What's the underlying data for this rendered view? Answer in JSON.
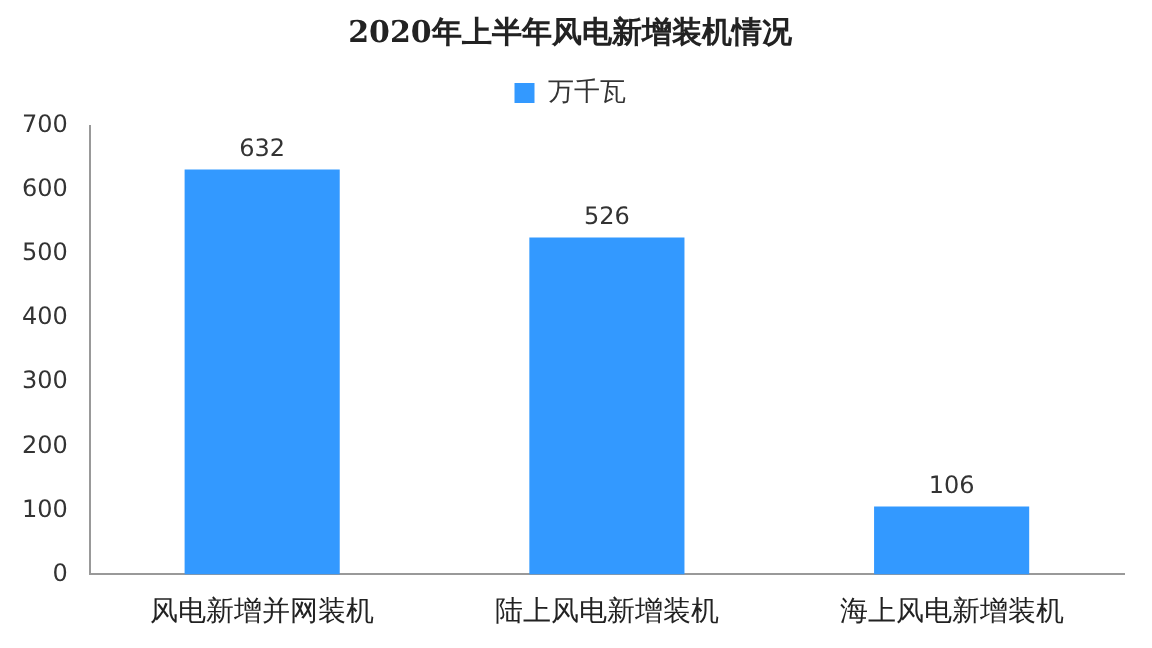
{
  "chart_data": {
    "type": "bar",
    "title": "2020年上半年风电新增装机情况",
    "categories": [
      "风电新增并网装机",
      "陆上风电新增装机",
      "海上风电新增装机"
    ],
    "series": [
      {
        "name": "万千瓦",
        "color": "#3399ff",
        "values": [
          632,
          526,
          106
        ]
      }
    ],
    "ylim": [
      0,
      700
    ],
    "yticks": [
      0,
      100,
      200,
      300,
      400,
      500,
      600,
      700
    ],
    "grid": false,
    "legend": "top",
    "data_labels": true
  }
}
